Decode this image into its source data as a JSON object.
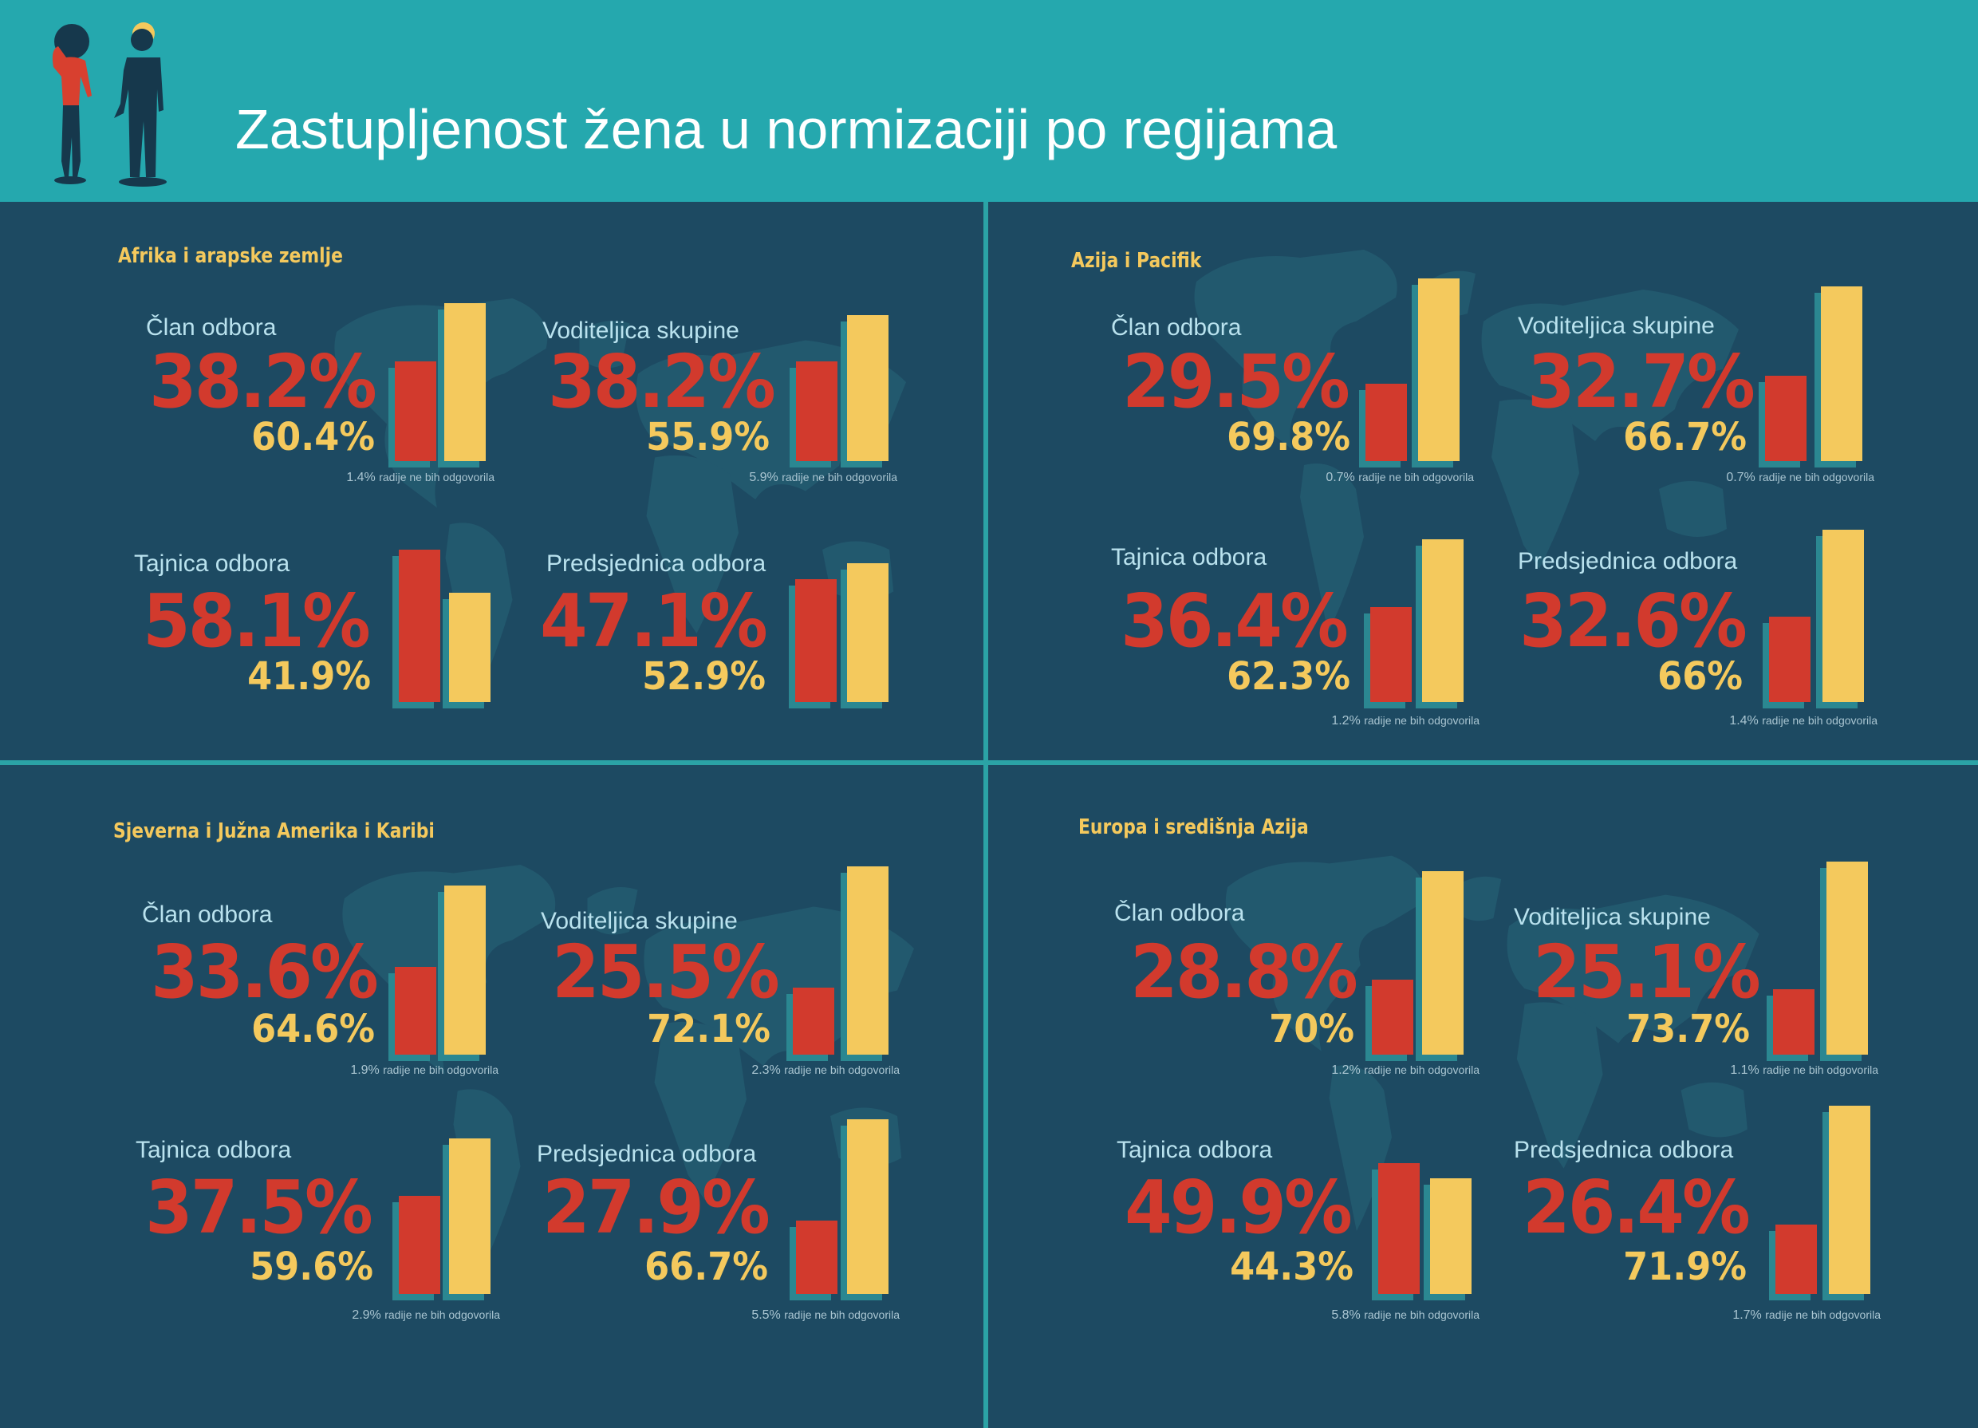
{
  "header": {
    "title": "Zastupljenost žena u normizaciji po regijama"
  },
  "colors": {
    "header_bg": "#25a8ae",
    "panel_bg": "#1d4a62",
    "women": "#d23a2d",
    "men": "#f4c95d",
    "map": "#22596e"
  },
  "icons": [
    "woman-figure-icon",
    "man-figure-icon",
    "world-map-icon"
  ],
  "chart_data": [
    {
      "type": "bar",
      "title": "Afrika i arapske zemlje",
      "ylim": [
        0,
        100
      ],
      "metrics": [
        {
          "label": "Član odbora",
          "red": 38.2,
          "yellow": 60.4,
          "red_label": "38.2%",
          "yellow_label": "60.4%",
          "note_value": "1.4%",
          "note_text": "radije ne bih odgovorila"
        },
        {
          "label": "Voditeljica skupine",
          "red": 38.2,
          "yellow": 55.9,
          "red_label": "38.2%",
          "yellow_label": "55.9%",
          "note_value": "5.9%",
          "note_text": "radije ne bih odgovorila"
        },
        {
          "label": "Tajnica odbora",
          "red": 58.1,
          "yellow": 41.9,
          "red_label": "58.1%",
          "yellow_label": "41.9%",
          "note_value": "",
          "note_text": ""
        },
        {
          "label": "Predsjednica odbora",
          "red": 47.1,
          "yellow": 52.9,
          "red_label": "47.1%",
          "yellow_label": "52.9%",
          "note_value": "",
          "note_text": ""
        }
      ]
    },
    {
      "type": "bar",
      "title": "Azija i Pacifik",
      "ylim": [
        0,
        100
      ],
      "metrics": [
        {
          "label": "Član odbora",
          "red": 29.5,
          "yellow": 69.8,
          "red_label": "29.5%",
          "yellow_label": "69.8%",
          "note_value": "0.7%",
          "note_text": "radije ne bih odgovorila"
        },
        {
          "label": "Voditeljica skupine",
          "red": 32.7,
          "yellow": 66.7,
          "red_label": "32.7%",
          "yellow_label": "66.7%",
          "note_value": "0.7%",
          "note_text": "radije ne bih odgovorila"
        },
        {
          "label": "Tajnica odbora",
          "red": 36.4,
          "yellow": 62.3,
          "red_label": "36.4%",
          "yellow_label": "62.3%",
          "note_value": "1.2%",
          "note_text": "radije ne bih odgovorila"
        },
        {
          "label": "Predsjednica odbora",
          "red": 32.6,
          "yellow": 66,
          "red_label": "32.6%",
          "yellow_label": "66%",
          "note_value": "1.4%",
          "note_text": "radije ne bih odgovorila"
        }
      ]
    },
    {
      "type": "bar",
      "title": "Sjeverna i Južna Amerika i Karibi",
      "ylim": [
        0,
        100
      ],
      "metrics": [
        {
          "label": "Član odbora",
          "red": 33.6,
          "yellow": 64.6,
          "red_label": "33.6%",
          "yellow_label": "64.6%",
          "note_value": "1.9%",
          "note_text": "radije ne bih odgovorila"
        },
        {
          "label": "Voditeljica skupine",
          "red": 25.5,
          "yellow": 72.1,
          "red_label": "25.5%",
          "yellow_label": "72.1%",
          "note_value": "2.3%",
          "note_text": "radije ne bih odgovorila"
        },
        {
          "label": "Tajnica odbora",
          "red": 37.5,
          "yellow": 59.6,
          "red_label": "37.5%",
          "yellow_label": "59.6%",
          "note_value": "2.9%",
          "note_text": "radije ne bih odgovorila"
        },
        {
          "label": "Predsjednica odbora",
          "red": 27.9,
          "yellow": 66.7,
          "red_label": "27.9%",
          "yellow_label": "66.7%",
          "note_value": "5.5%",
          "note_text": "radije ne bih odgovorila"
        }
      ]
    },
    {
      "type": "bar",
      "title": "Europa i središnja Azija",
      "ylim": [
        0,
        100
      ],
      "metrics": [
        {
          "label": "Član odbora",
          "red": 28.8,
          "yellow": 70,
          "red_label": "28.8%",
          "yellow_label": "70%",
          "note_value": "1.2%",
          "note_text": "radije ne bih odgovorila"
        },
        {
          "label": "Voditeljica skupine",
          "red": 25.1,
          "yellow": 73.7,
          "red_label": "25.1%",
          "yellow_label": "73.7%",
          "note_value": "1.1%",
          "note_text": "radije ne bih odgovorila"
        },
        {
          "label": "Tajnica odbora",
          "red": 49.9,
          "yellow": 44.3,
          "red_label": "49.9%",
          "yellow_label": "44.3%",
          "note_value": "5.8%",
          "note_text": "radije ne bih odgovorila"
        },
        {
          "label": "Predsjednica odbora",
          "red": 26.4,
          "yellow": 71.9,
          "red_label": "26.4%",
          "yellow_label": "71.9%",
          "note_value": "1.7%",
          "note_text": "radije ne bih odgovorila"
        }
      ]
    }
  ]
}
